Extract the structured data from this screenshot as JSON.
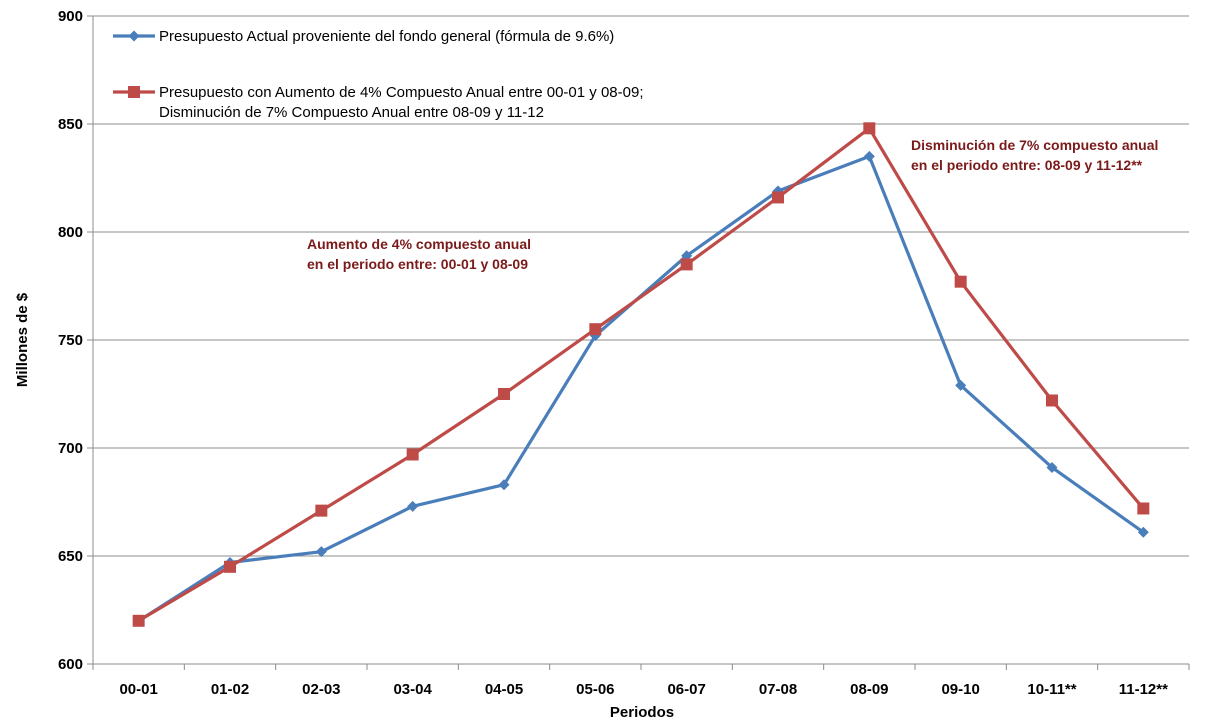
{
  "chart_data": {
    "type": "line",
    "title": "",
    "xlabel": "Periodos",
    "ylabel": "Millones de $",
    "ylim": [
      600,
      900
    ],
    "yticks": [
      600,
      650,
      700,
      750,
      800,
      850,
      900
    ],
    "grid": true,
    "legend_position": "top-left",
    "categories": [
      "00-01",
      "01-02",
      "02-03",
      "03-04",
      "04-05",
      "05-06",
      "06-07",
      "07-08",
      "08-09",
      "09-10",
      "10-11**",
      "11-12**"
    ],
    "series": [
      {
        "name": "Presupuesto Actual proveniente del fondo general (fórmula de 9.6%)",
        "color": "#4a7ebb",
        "marker": "diamond",
        "values": [
          620,
          647,
          652,
          673,
          683,
          752,
          789,
          819,
          835,
          729,
          691,
          661
        ]
      },
      {
        "name": "Presupuesto con Aumento de 4% Compuesto Anual entre 00-01  y 08-09; Disminución de 7% Compuesto Anual entre 08-09 y 11-12",
        "name_lines": [
          "Presupuesto con Aumento de 4% Compuesto Anual entre 00-01  y 08-09;",
          "Disminución de 7% Compuesto Anual entre 08-09 y 11-12"
        ],
        "color": "#be4b48",
        "marker": "square",
        "values": [
          620,
          645,
          671,
          697,
          725,
          755,
          785,
          816,
          848,
          777,
          722,
          672
        ]
      }
    ],
    "annotations": [
      {
        "lines": [
          "Aumento de 4% compuesto anual",
          "en el periodo entre: 00-01 y 08-09"
        ]
      },
      {
        "lines": [
          "Disminución de 7% compuesto anual",
          "en el periodo entre: 08-09 y 11-12**"
        ]
      }
    ]
  }
}
